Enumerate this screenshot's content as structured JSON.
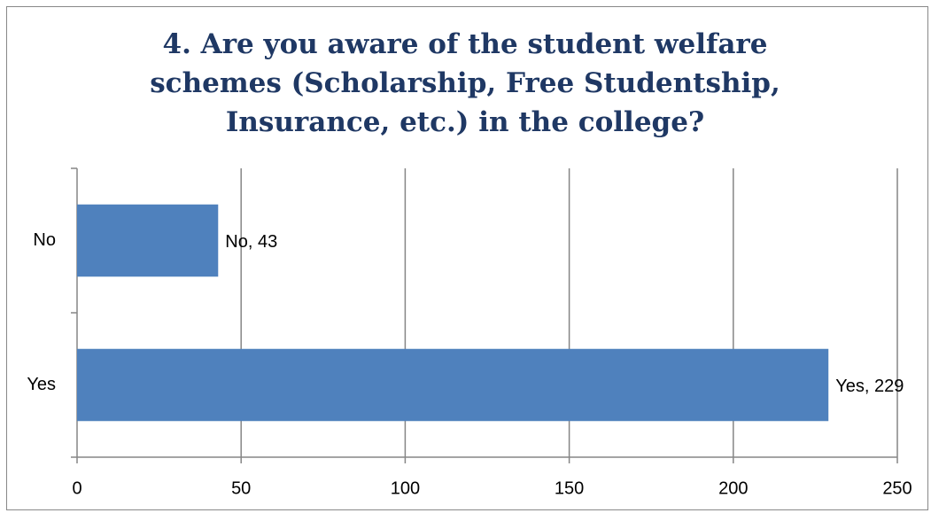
{
  "chart_data": {
    "type": "bar",
    "orientation": "horizontal",
    "title": "4. Are you aware of the student welfare schemes (Scholarship, Free Studentship, Insurance, etc.) in the college?",
    "categories": [
      "No",
      "Yes"
    ],
    "values": [
      43,
      229
    ],
    "value_labels": [
      "No, 43",
      "Yes, 229"
    ],
    "color": "#4f81bd",
    "xlim": [
      0,
      250
    ],
    "xticks": [
      0,
      50,
      100,
      150,
      200,
      250
    ],
    "grid": true
  }
}
